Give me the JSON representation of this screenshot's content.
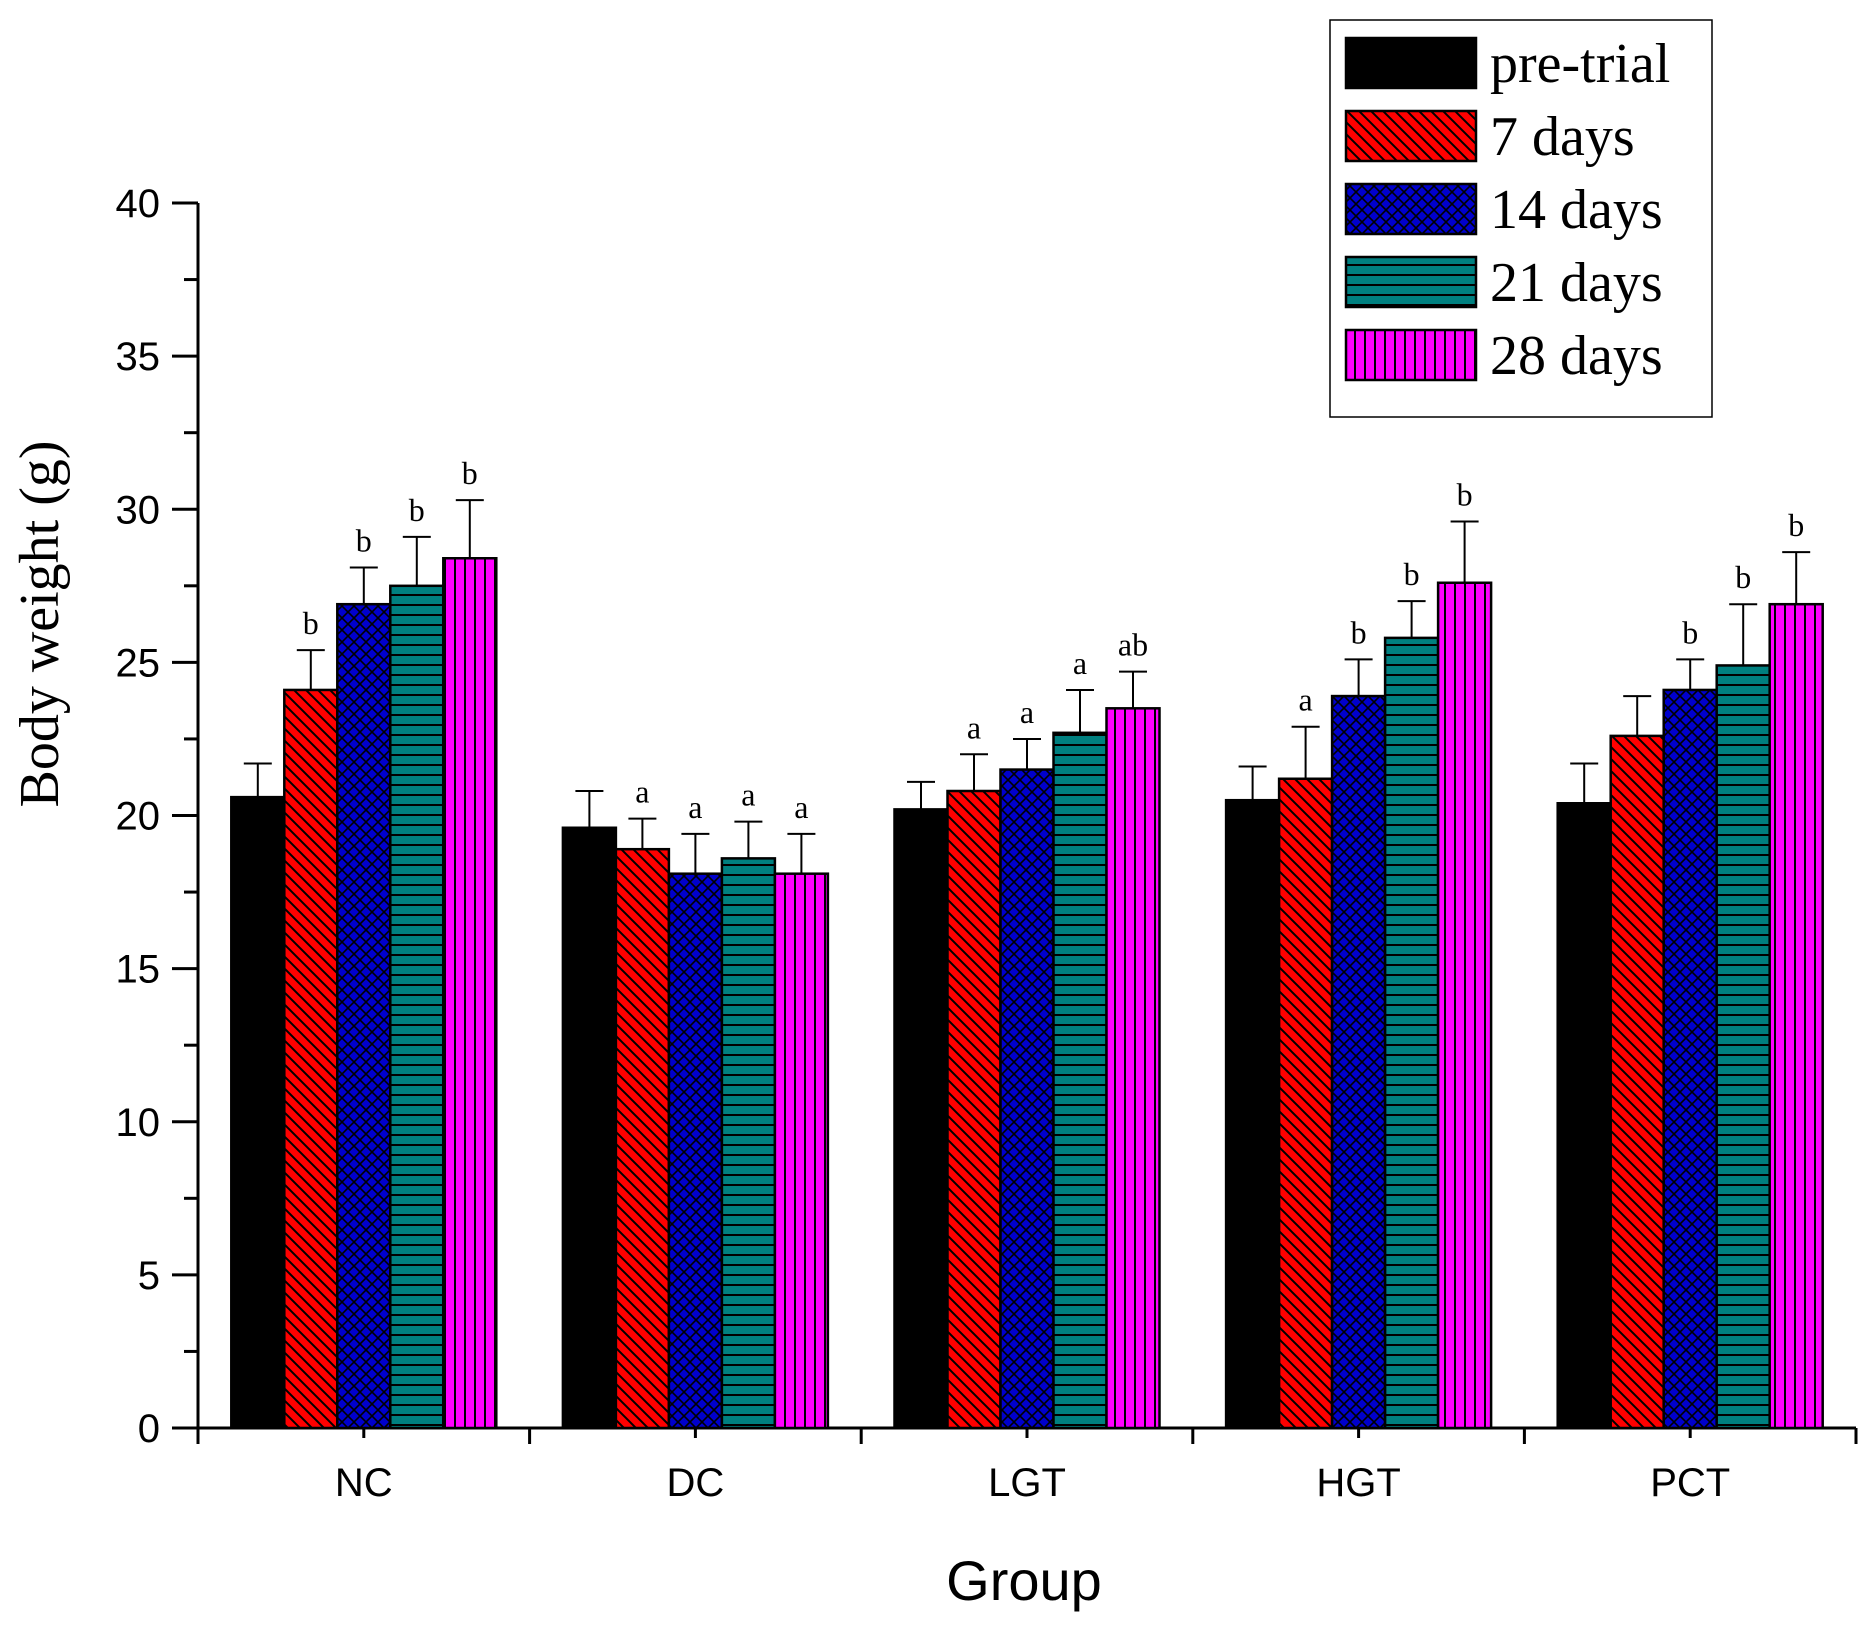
{
  "chart_data": {
    "type": "bar",
    "title": "",
    "xlabel": "Group",
    "ylabel": "Body weight (g)",
    "ylim": [
      0,
      40
    ],
    "yticks": [
      0,
      5,
      10,
      15,
      20,
      25,
      30,
      35,
      40
    ],
    "categories": [
      "NC",
      "DC",
      "LGT",
      "HGT",
      "PCT"
    ],
    "legend_position": "top-right",
    "series": [
      {
        "name": "pre-trial",
        "color": "#000000",
        "pattern": "solid",
        "values": [
          20.6,
          19.6,
          20.2,
          20.5,
          20.4
        ],
        "errors": [
          1.1,
          1.2,
          0.9,
          1.1,
          1.3
        ],
        "labels": [
          "",
          "",
          "",
          "",
          ""
        ]
      },
      {
        "name": "7 days",
        "color": "#ff0000",
        "pattern": "diagonal",
        "values": [
          24.1,
          18.9,
          20.8,
          21.2,
          22.6
        ],
        "errors": [
          1.3,
          1.0,
          1.2,
          1.7,
          1.3
        ],
        "labels": [
          "b",
          "a",
          "a",
          "a",
          ""
        ]
      },
      {
        "name": "14 days",
        "color": "#0000cc",
        "pattern": "crosshatch",
        "values": [
          26.9,
          18.1,
          21.5,
          23.9,
          24.1
        ],
        "errors": [
          1.2,
          1.3,
          1.0,
          1.2,
          1.0
        ],
        "labels": [
          "b",
          "a",
          "a",
          "b",
          "b"
        ]
      },
      {
        "name": "21 days",
        "color": "#008080",
        "pattern": "horizontal",
        "values": [
          27.5,
          18.6,
          22.7,
          25.8,
          24.9
        ],
        "errors": [
          1.6,
          1.2,
          1.4,
          1.2,
          2.0
        ],
        "labels": [
          "b",
          "a",
          "a",
          "b",
          "b"
        ]
      },
      {
        "name": "28 days",
        "color": "#ff00ff",
        "pattern": "vertical",
        "values": [
          28.4,
          18.1,
          23.5,
          27.6,
          26.9
        ],
        "errors": [
          1.9,
          1.3,
          1.2,
          2.0,
          1.7
        ],
        "labels": [
          "b",
          "a",
          "ab",
          "b",
          "b"
        ]
      }
    ]
  }
}
